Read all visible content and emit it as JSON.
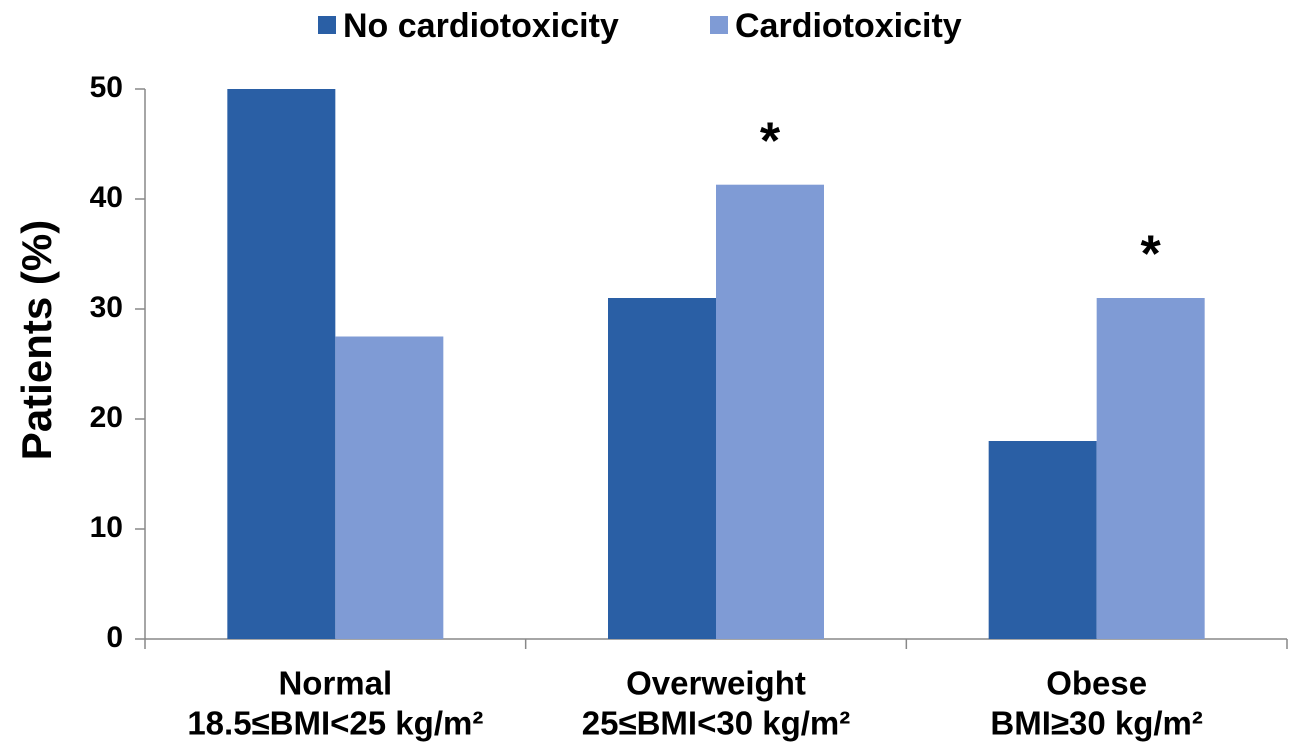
{
  "chart_data": {
    "type": "bar",
    "y_label": "Patients (%)",
    "categories": [
      [
        "Normal",
        "18.5≤BMI<25 kg/m²"
      ],
      [
        "Overweight",
        "25≤BMI<30 kg/m²"
      ],
      [
        "Obese",
        "BMI≥30 kg/m²"
      ]
    ],
    "series": [
      {
        "name": "No cardiotoxicity",
        "color": "#2a5fa5",
        "values": [
          50,
          31,
          18
        ]
      },
      {
        "name": "Cardiotoxicity",
        "color": "#7f9bd5",
        "values": [
          27.5,
          41.3,
          31
        ]
      }
    ],
    "annotations": [
      {
        "text": "*",
        "series": 1,
        "category": 1
      },
      {
        "text": "*",
        "series": 1,
        "category": 2
      }
    ],
    "ylim": [
      0,
      50
    ],
    "yticks": [
      0,
      10,
      20,
      30,
      40,
      50
    ],
    "grid": false
  }
}
